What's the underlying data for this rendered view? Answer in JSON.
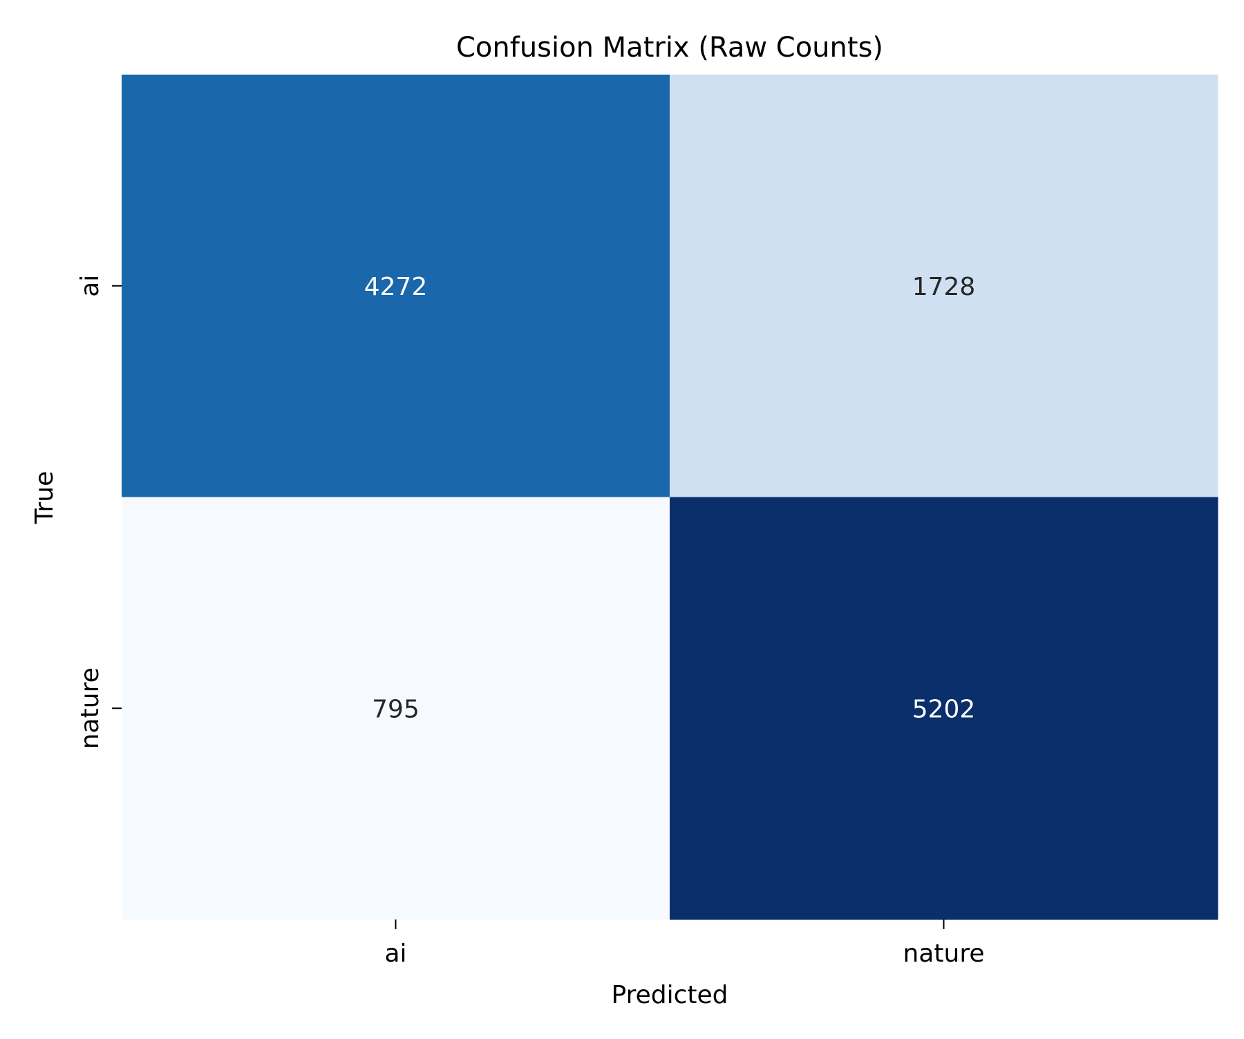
{
  "chart_data": {
    "type": "heatmap",
    "title": "Confusion Matrix (Raw Counts)",
    "xlabel": "Predicted",
    "ylabel": "True",
    "x_categories": [
      "ai",
      "nature"
    ],
    "y_categories": [
      "ai",
      "nature"
    ],
    "values": [
      [
        4272,
        1728
      ],
      [
        795,
        5202
      ]
    ],
    "colormap": "Blues",
    "colorbar": false,
    "cell_colors": [
      [
        "#1a67ac",
        "#cee0f1"
      ],
      [
        "#f6fafe",
        "#0a2f6b"
      ]
    ],
    "annotation_colors": [
      [
        "#ffffff",
        "#262626"
      ],
      [
        "#262626",
        "#ffffff"
      ]
    ],
    "grid": false
  }
}
